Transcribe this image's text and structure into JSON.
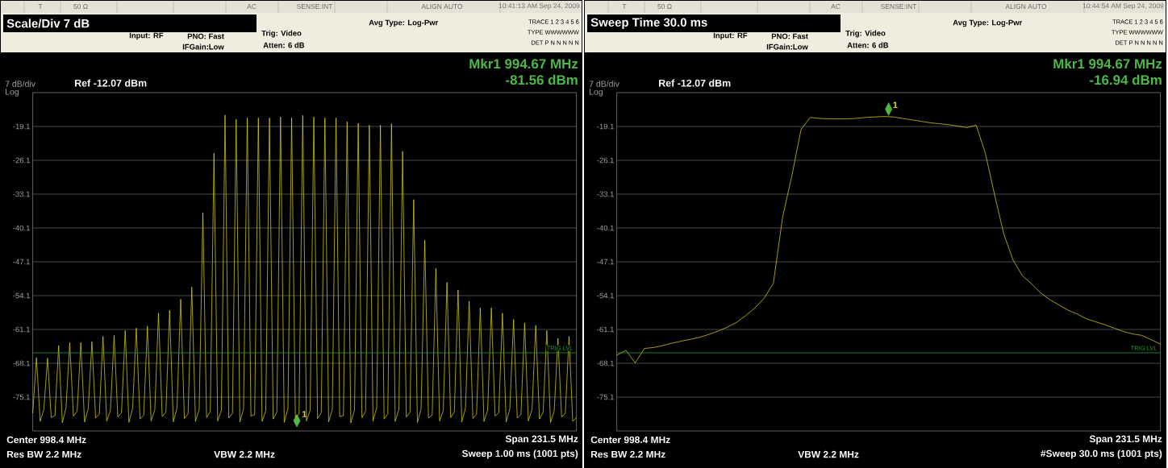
{
  "chart_data": [
    {
      "type": "line",
      "categories": [
        null,
        null,
        null,
        null,
        null,
        null,
        null,
        null,
        null,
        null,
        null,
        null,
        null,
        null,
        null,
        null,
        null,
        null,
        null,
        null,
        null,
        null,
        null,
        null,
        null,
        null,
        null,
        null,
        null,
        null,
        null,
        null,
        null,
        null,
        null,
        null,
        null,
        null,
        null,
        null,
        null,
        null,
        null,
        null,
        null,
        null,
        null,
        null,
        null,
        null,
        null,
        null,
        null,
        null,
        null,
        null,
        null,
        null,
        null,
        null,
        null,
        null,
        null,
        null,
        null,
        null,
        null,
        null,
        null,
        null,
        null,
        null,
        null,
        null,
        null,
        null,
        null,
        null,
        null,
        null,
        null,
        null,
        null,
        null,
        null,
        null,
        null,
        null,
        null,
        null,
        null,
        null,
        null,
        null,
        null,
        null,
        null,
        null,
        null,
        null,
        null,
        null,
        null,
        null,
        null,
        null,
        null,
        null,
        null,
        null,
        null,
        null,
        null,
        null,
        null,
        null,
        null,
        null,
        null,
        null,
        null,
        null,
        null,
        null,
        null,
        null,
        null,
        null,
        null,
        null,
        null,
        null,
        null,
        null,
        null,
        null,
        null,
        null,
        null,
        null,
        null,
        null,
        null,
        null,
        null,
        null,
        null,
        null
      ],
      "series": [
        {
          "color": "#e8e010",
          "values": [
            -78.4,
            -66.9,
            -80.1,
            -77.6,
            -67.0,
            -79.3,
            -78.9,
            -64.4,
            -80.4,
            -77.2,
            -63.8,
            -79.0,
            -78.0,
            -63.8,
            -80.2,
            -77.5,
            -63.6,
            -79.4,
            -78.6,
            -62.5,
            -80.0,
            -77.9,
            -62.3,
            -79.2,
            -78.3,
            -61.3,
            -80.3,
            -77.4,
            -60.8,
            -79.6,
            -78.8,
            -60.4,
            -80.0,
            -77.7,
            -57.7,
            -79.1,
            -78.2,
            -57.1,
            -80.2,
            -77.3,
            -54.8,
            -79.5,
            -78.5,
            -52.3,
            -80.1,
            -77.6,
            -36.9,
            -79.3,
            -78.1,
            -24.6,
            -80.0,
            -77.8,
            -16.7,
            -79.4,
            -78.4,
            -17.6,
            -80.2,
            -77.5,
            -17.3,
            -79.0,
            -78.7,
            -17.3,
            -80.1,
            -77.9,
            -17.3,
            -79.6,
            -78.2,
            -17.1,
            -80.3,
            -77.4,
            -17.3,
            -79.2,
            -78.6,
            -16.8,
            -80.0,
            -77.8,
            -17.1,
            -79.5,
            -78.3,
            -17.3,
            -80.2,
            -77.6,
            -17.3,
            -79.1,
            -78.9,
            -18.1,
            -80.4,
            -77.7,
            -18.4,
            -79.3,
            -78.0,
            -18.8,
            -80.0,
            -77.3,
            -18.8,
            -79.6,
            -78.5,
            -18.5,
            -80.1,
            -77.6,
            -24.2,
            -79.2,
            -78.2,
            -34.2,
            -80.3,
            -77.5,
            -42.6,
            -79.4,
            -78.8,
            -48.4,
            -80.0,
            -77.9,
            -51.3,
            -79.3,
            -78.1,
            -52.9,
            -80.2,
            -77.4,
            -55.2,
            -79.5,
            -78.6,
            -56.6,
            -80.1,
            -77.8,
            -56.6,
            -79.0,
            -78.3,
            -57.7,
            -80.2,
            -77.5,
            -59.0,
            -79.4,
            -78.7,
            -59.7,
            -80.0,
            -77.6,
            -60.2,
            -79.6,
            -78.2,
            -61.3,
            -80.3,
            -77.9,
            -62.9,
            -79.2,
            -78.4,
            -62.5,
            -80.1,
            -79.3
          ]
        }
      ],
      "ylim": [
        -82.07,
        -12.07
      ],
      "yticks": [
        {
          "value": -19.07,
          "label": "-19.1"
        },
        {
          "value": -26.07,
          "label": "-26.1"
        },
        {
          "value": -33.07,
          "label": "-33.1"
        },
        {
          "value": -40.07,
          "label": "-40.1"
        },
        {
          "value": -47.07,
          "label": "-47.1"
        },
        {
          "value": -54.07,
          "label": "-54.1"
        },
        {
          "value": -61.07,
          "label": "-61.1"
        },
        {
          "value": -68.07,
          "label": "-68.1"
        },
        {
          "value": -75.07,
          "label": "-75.1"
        }
      ],
      "grid": "y",
      "tick_labels": "y",
      "ref_lines": [
        {
          "axis": "y",
          "value": -65.9,
          "label": "TRIG LVL",
          "color": "#1f9a3a"
        }
      ],
      "annotations": [
        "T",
        "50 Ω",
        "AC",
        "SENSE:INT",
        "ALIGN AUTO",
        "10:41:13 AM Sep 24, 2009",
        "Scale/Div  7 dB",
        "Input: RF",
        "PNO: Fast",
        "IFGain:Low",
        "Trig: Video",
        "Atten: 6 dB",
        "Avg Type: Log-Pwr",
        "TRACE 1 2 3 4 5 6",
        "TYPE WWWWWW",
        "DET P N N N N N",
        "Mkr1 994.67 MHz",
        "-81.56 dBm",
        "7 dB/div",
        "Ref -12.07 dBm",
        "Log",
        "Center 998.4 MHz",
        "Res BW 2.2 MHz",
        "VBW 2.2 MHz",
        "Span 231.5 MHz",
        "Sweep  1.00 ms (1001 pts)",
        "1"
      ]
    },
    {
      "type": "line",
      "categories": [
        null,
        null,
        null,
        null,
        null,
        null,
        null,
        null,
        null,
        null,
        null,
        null,
        null,
        null,
        null,
        null,
        null,
        null,
        null,
        null,
        null,
        null,
        null,
        null,
        null,
        null,
        null,
        null,
        null,
        null,
        null,
        null,
        null,
        null,
        null,
        null,
        null,
        null,
        null,
        null,
        null,
        null,
        null,
        null,
        null,
        null,
        null,
        null,
        null,
        null,
        null,
        null,
        null,
        null,
        null,
        null,
        null,
        null,
        null,
        null
      ],
      "series": [
        {
          "color": "#e8e010",
          "values": [
            -66.4,
            -65.4,
            -68.0,
            -65.0,
            -64.8,
            -64.4,
            -63.9,
            -63.5,
            -63.1,
            -62.7,
            -62.1,
            -61.4,
            -60.6,
            -59.6,
            -58.2,
            -56.6,
            -54.6,
            -51.5,
            -37.8,
            -29.3,
            -19.7,
            -17.2,
            -17.4,
            -17.5,
            -17.5,
            -17.5,
            -17.4,
            -17.2,
            -17.1,
            -17.0,
            -17.1,
            -17.4,
            -17.7,
            -18.0,
            -18.3,
            -18.5,
            -18.7,
            -19.0,
            -19.3,
            -18.8,
            -24.6,
            -33.2,
            -41.3,
            -46.7,
            -49.9,
            -51.6,
            -53.5,
            -54.9,
            -56.0,
            -57.1,
            -57.9,
            -58.9,
            -59.5,
            -60.1,
            -60.8,
            -61.5,
            -62.0,
            -62.3,
            -63.2,
            -64.1
          ]
        }
      ],
      "ylim": [
        -82.07,
        -12.07
      ],
      "yticks": [
        {
          "value": -19.07,
          "label": "-19.1"
        },
        {
          "value": -26.07,
          "label": "-26.1"
        },
        {
          "value": -33.07,
          "label": "-33.1"
        },
        {
          "value": -40.07,
          "label": "-40.1"
        },
        {
          "value": -47.07,
          "label": "-47.1"
        },
        {
          "value": -54.07,
          "label": "-54.1"
        },
        {
          "value": -61.07,
          "label": "-61.1"
        },
        {
          "value": -68.07,
          "label": "-68.1"
        },
        {
          "value": -75.07,
          "label": "-75.1"
        }
      ],
      "grid": "y",
      "tick_labels": "y",
      "ref_lines": [
        {
          "axis": "y",
          "value": -65.9,
          "label": "TRIG LVL",
          "color": "#1f9a3a"
        }
      ],
      "annotations": [
        "T",
        "50 Ω",
        "AC",
        "SENSE:INT",
        "ALIGN AUTO",
        "10:44:54 AM Sep 24, 2009",
        "Sweep Time  30.0 ms",
        "Input: RF",
        "PNO: Fast",
        "IFGain:Low",
        "Trig: Video",
        "Atten: 6 dB",
        "Avg Type: Log-Pwr",
        "TRACE 1 2 3 4 5 6",
        "TYPE WWWWWW",
        "DET P N N N N N",
        "Mkr1 994.67 MHz",
        "-16.94 dBm",
        "7 dB/div",
        "Ref -12.07 dBm",
        "Log",
        "Center 998.4 MHz",
        "Res BW 2.2 MHz",
        "VBW 2.2 MHz",
        "Span 231.5 MHz",
        "#Sweep  30.0 ms (1001 pts)",
        {
          "text": "1",
          "y": -16.94
        }
      ]
    }
  ]
}
